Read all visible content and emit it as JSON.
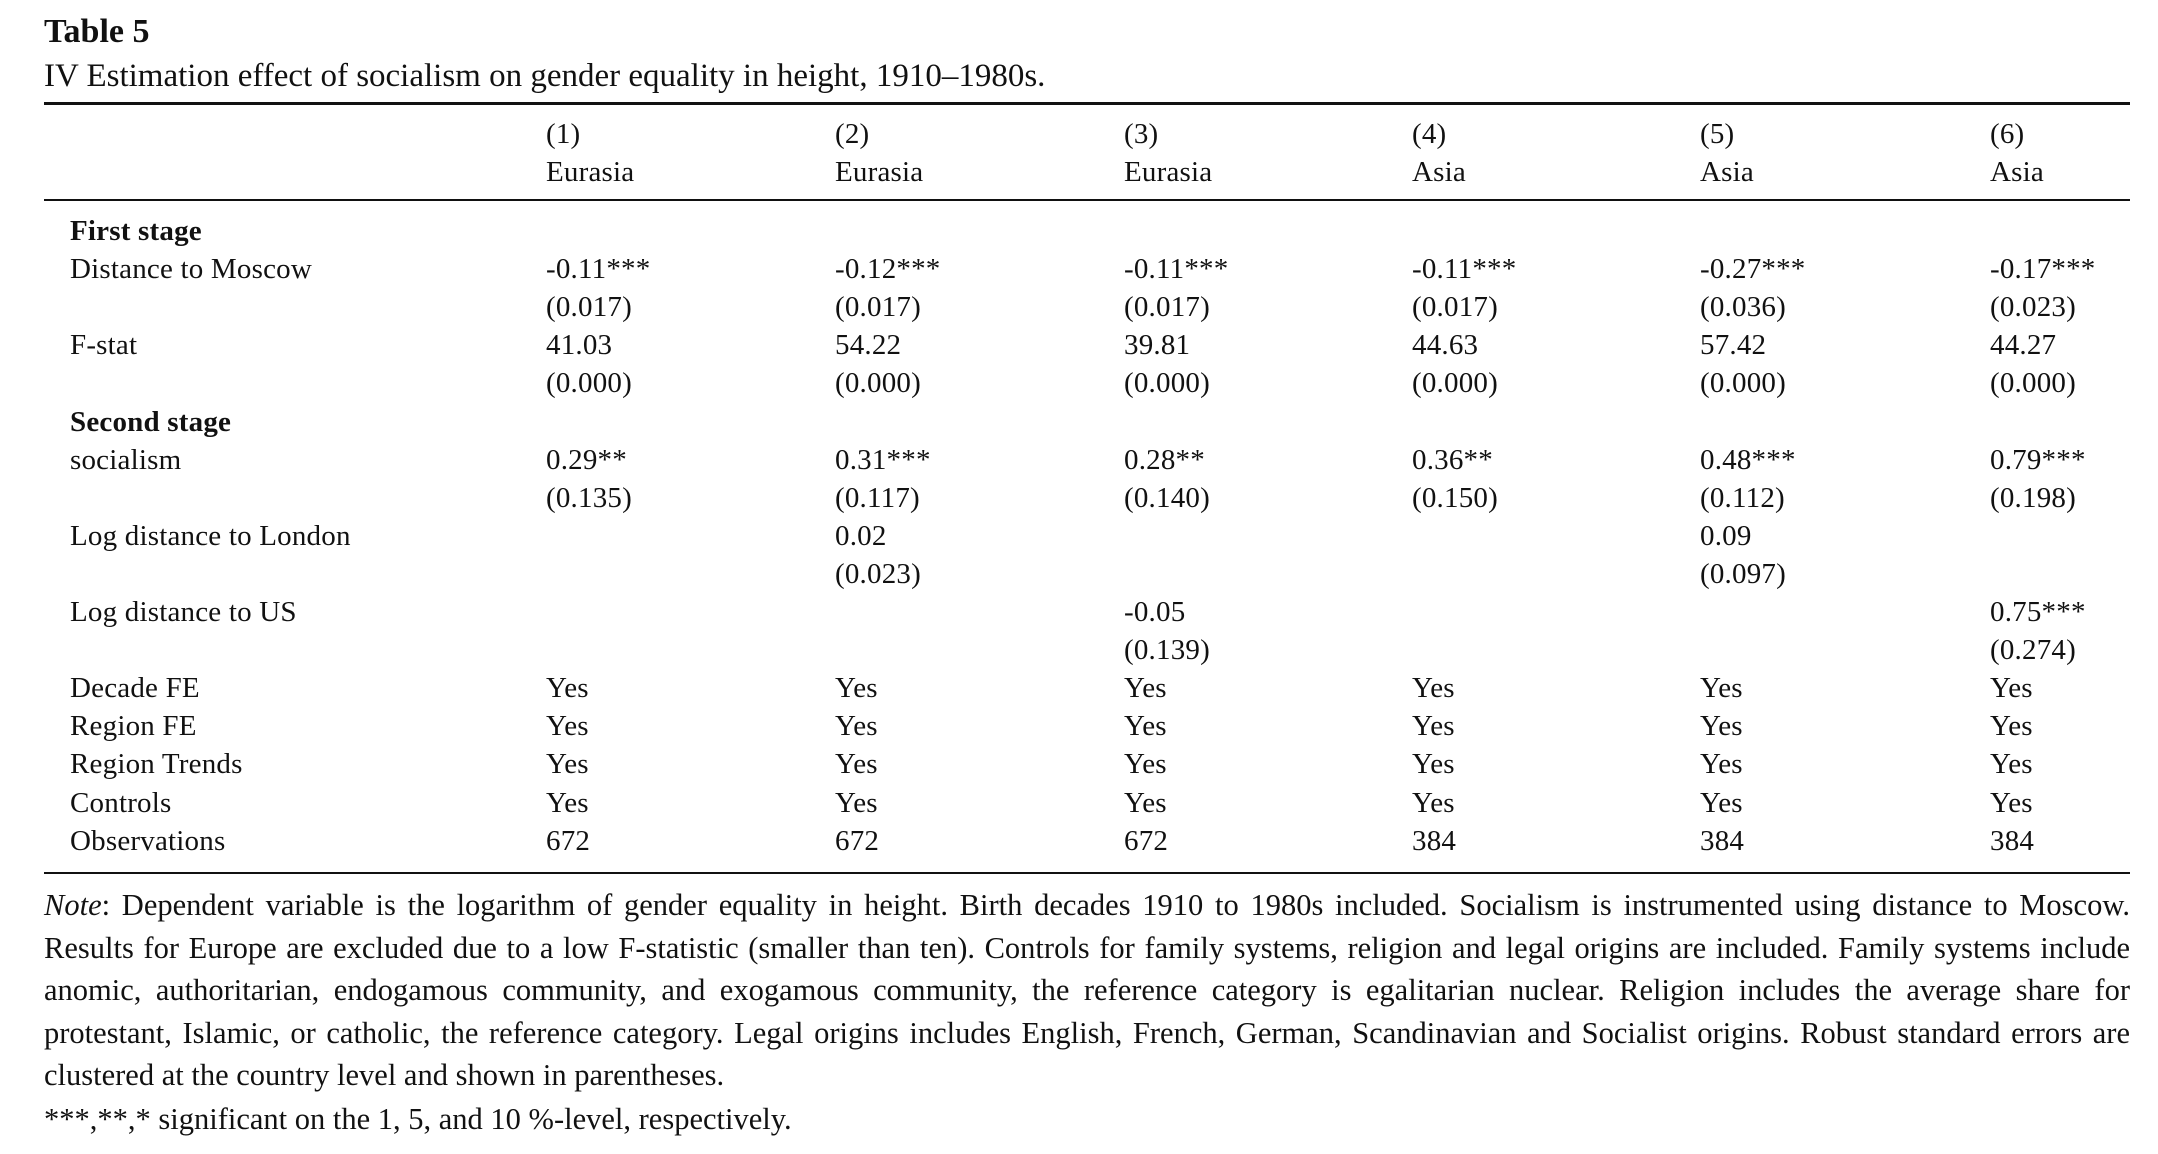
{
  "table_number": "Table 5",
  "caption": "IV Estimation effect of socialism on gender equality in height, 1910–1980s.",
  "columns": [
    {
      "num": "(1)",
      "region": "Eurasia"
    },
    {
      "num": "(2)",
      "region": "Eurasia"
    },
    {
      "num": "(3)",
      "region": "Eurasia"
    },
    {
      "num": "(4)",
      "region": "Asia"
    },
    {
      "num": "(5)",
      "region": "Asia"
    },
    {
      "num": "(6)",
      "region": "Asia"
    }
  ],
  "rows": [
    {
      "label": "First stage",
      "section": true,
      "values": [
        "",
        "",
        "",
        "",
        "",
        ""
      ]
    },
    {
      "label": "Distance to Moscow",
      "values": [
        "-0.11***",
        "-0.12***",
        "-0.11***",
        "-0.11***",
        "-0.27***",
        "-0.17***"
      ]
    },
    {
      "label": "",
      "values": [
        "(0.017)",
        "(0.017)",
        "(0.017)",
        "(0.017)",
        "(0.036)",
        "(0.023)"
      ]
    },
    {
      "label": "F-stat",
      "values": [
        "41.03",
        "54.22",
        "39.81",
        "44.63",
        "57.42",
        "44.27"
      ]
    },
    {
      "label": "",
      "values": [
        "(0.000)",
        "(0.000)",
        "(0.000)",
        "(0.000)",
        "(0.000)",
        "(0.000)"
      ]
    },
    {
      "label": "Second stage",
      "section": true,
      "values": [
        "",
        "",
        "",
        "",
        "",
        ""
      ]
    },
    {
      "label": "socialism",
      "values": [
        "0.29**",
        "0.31***",
        "0.28**",
        "0.36**",
        "0.48***",
        "0.79***"
      ]
    },
    {
      "label": "",
      "values": [
        "(0.135)",
        "(0.117)",
        "(0.140)",
        "(0.150)",
        "(0.112)",
        "(0.198)"
      ]
    },
    {
      "label": "Log distance to London",
      "values": [
        "",
        "0.02",
        "",
        "",
        "0.09",
        ""
      ]
    },
    {
      "label": "",
      "values": [
        "",
        "(0.023)",
        "",
        "",
        "(0.097)",
        ""
      ]
    },
    {
      "label": "Log distance to US",
      "values": [
        "",
        "",
        "-0.05",
        "",
        "",
        "0.75***"
      ]
    },
    {
      "label": "",
      "values": [
        "",
        "",
        "(0.139)",
        "",
        "",
        "(0.274)"
      ]
    },
    {
      "label": "Decade FE",
      "values": [
        "Yes",
        "Yes",
        "Yes",
        "Yes",
        "Yes",
        "Yes"
      ]
    },
    {
      "label": "Region FE",
      "values": [
        "Yes",
        "Yes",
        "Yes",
        "Yes",
        "Yes",
        "Yes"
      ]
    },
    {
      "label": "Region Trends",
      "values": [
        "Yes",
        "Yes",
        "Yes",
        "Yes",
        "Yes",
        "Yes"
      ]
    },
    {
      "label": "Controls",
      "values": [
        "Yes",
        "Yes",
        "Yes",
        "Yes",
        "Yes",
        "Yes"
      ]
    },
    {
      "label": "Observations",
      "values": [
        "672",
        "672",
        "672",
        "384",
        "384",
        "384"
      ]
    }
  ],
  "note": {
    "lead": "Note",
    "text": ": Dependent variable is the logarithm of gender equality in height. Birth decades 1910 to 1980s included. Socialism is instrumented using distance to Moscow. Results for Europe are excluded due to a low F-statistic (smaller than ten). Controls for family systems, religion and legal origins are included. Family systems include anomic, authoritarian, endogamous community, and exogamous community, the reference category is egalitarian nuclear. Religion includes the average share for protestant, Islamic, or catholic, the reference category. Legal origins includes English, French, German, Scandinavian and Socialist origins. Robust standard errors are clustered at the country level and shown in parentheses.",
    "significance": "***,**,* significant on the 1, 5, and 10 %-level, respectively."
  }
}
